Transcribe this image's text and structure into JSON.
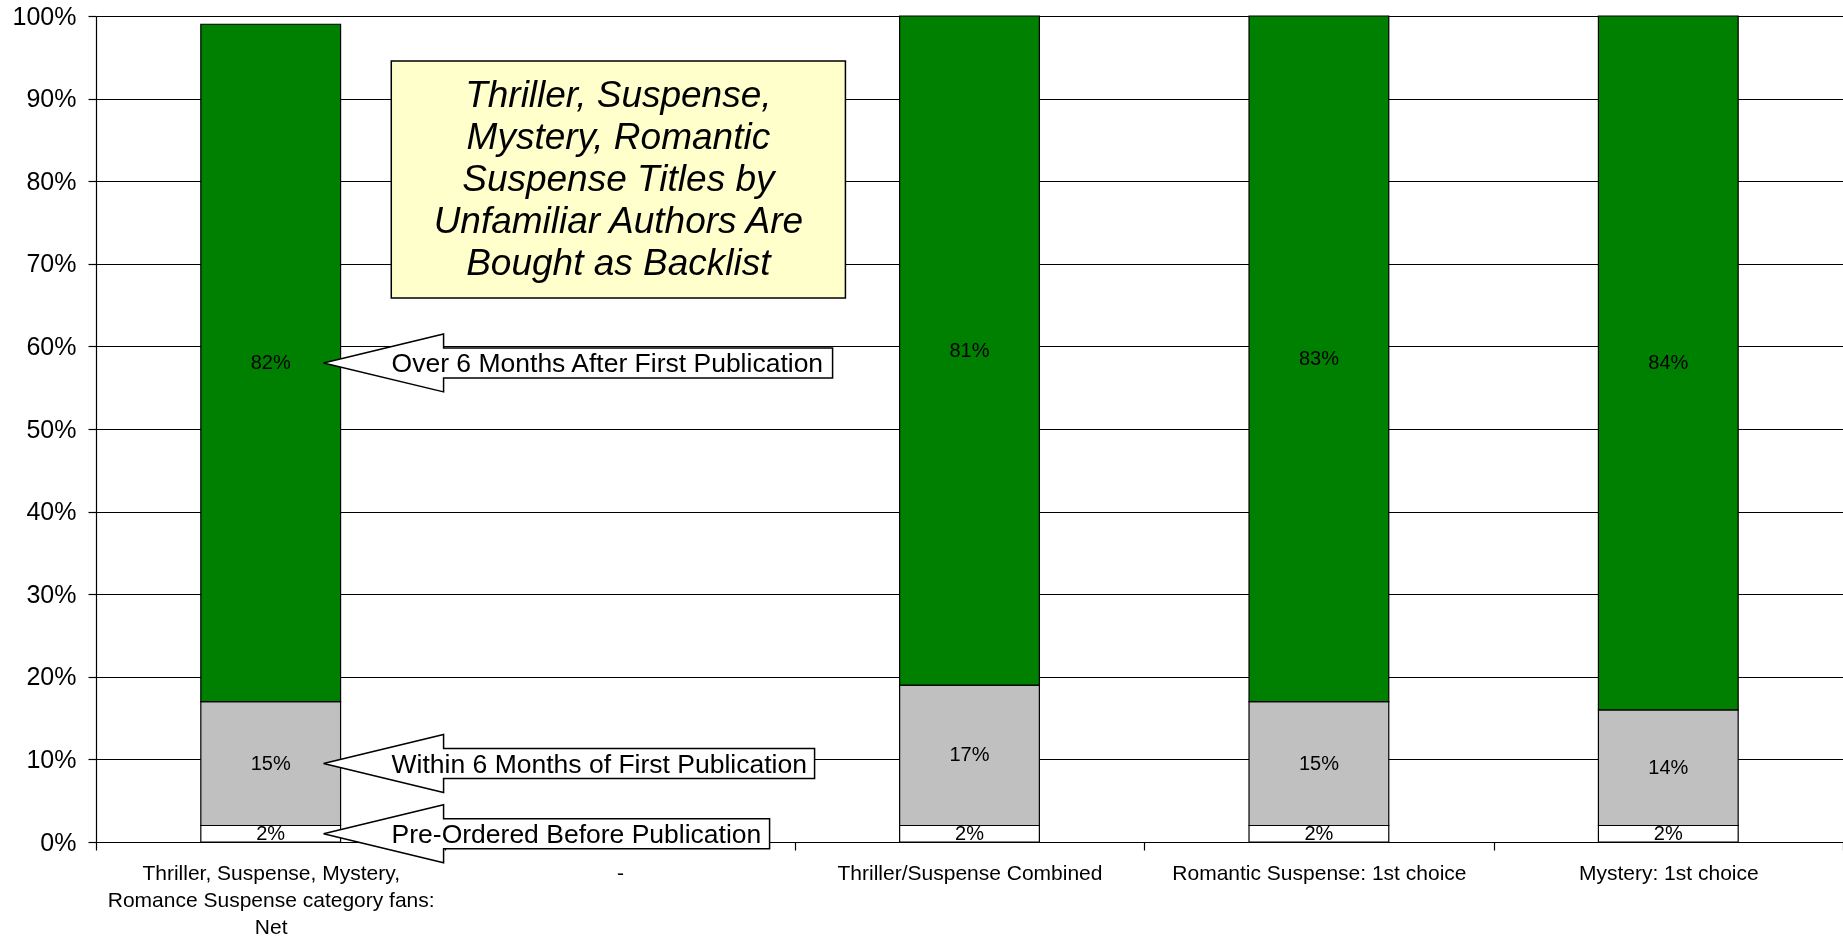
{
  "chart_data": {
    "type": "bar",
    "title": "Thriller, Suspense, Mystery, Romantic Suspense Titles by Unfamiliar Authors Are Bought as Backlist",
    "categories": [
      "Thriller, Suspense, Mystery, Romance Suspense category fans: Net",
      "-",
      "Thriller/Suspense Combined",
      "Romantic Suspense: 1st choice",
      "Mystery: 1st choice"
    ],
    "stacked": true,
    "series": [
      {
        "name": "Pre-Ordered Before Publication",
        "color": "#ffffff",
        "values": [
          2,
          null,
          2,
          2,
          2
        ],
        "value_labels": [
          "2%",
          null,
          "2%",
          "2%",
          "2%"
        ]
      },
      {
        "name": "Within 6 Months of First Publication",
        "color": "#c0c0c0",
        "values": [
          15,
          null,
          17,
          15,
          14
        ],
        "value_labels": [
          "15%",
          null,
          "17%",
          "15%",
          "14%"
        ]
      },
      {
        "name": "Over 6 Months After First Publication",
        "color": "#008000",
        "values": [
          82,
          null,
          81,
          83,
          84
        ],
        "value_labels": [
          "82%",
          null,
          "81%",
          "83%",
          "84%"
        ]
      }
    ],
    "ylim": [
      0,
      100
    ],
    "yticks": [
      {
        "value": 0,
        "label": "0%"
      },
      {
        "value": 10,
        "label": "10%"
      },
      {
        "value": 20,
        "label": "20%"
      },
      {
        "value": 30,
        "label": "30%"
      },
      {
        "value": 40,
        "label": "40%"
      },
      {
        "value": 50,
        "label": "50%"
      },
      {
        "value": 60,
        "label": "60%"
      },
      {
        "value": 70,
        "label": "70%"
      },
      {
        "value": 80,
        "label": "80%"
      },
      {
        "value": 90,
        "label": "90%"
      },
      {
        "value": 100,
        "label": "100%"
      }
    ],
    "grid": "y"
  }
}
